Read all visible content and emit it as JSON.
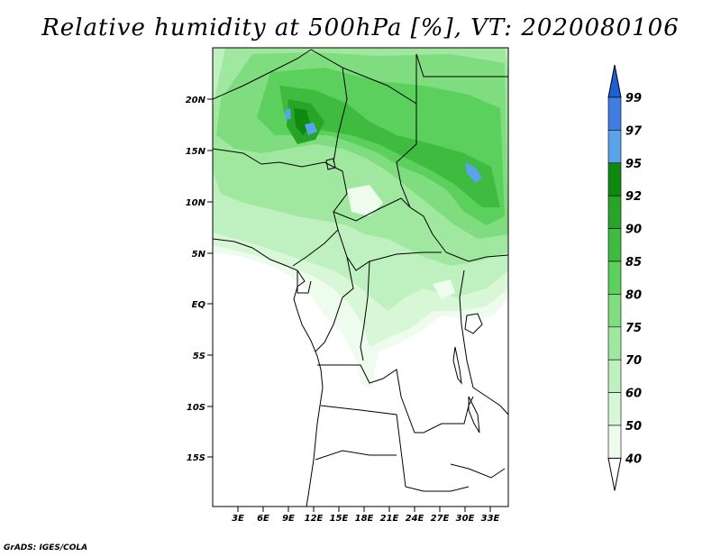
{
  "title": "Relative humidity at 500hPa [%], VT: 2020080106",
  "credit": "GrADS: IGES/COLA",
  "map": {
    "lon_range": [
      0,
      35
    ],
    "lat_range": [
      -20,
      25
    ],
    "lat_ticks": [
      "20N",
      "15N",
      "10N",
      "5N",
      "EQ",
      "5S",
      "10S",
      "15S"
    ],
    "lon_ticks": [
      "3E",
      "6E",
      "9E",
      "12E",
      "15E",
      "18E",
      "21E",
      "24E",
      "27E",
      "30E",
      "33E"
    ]
  },
  "colorbar": {
    "levels": [
      "99",
      "97",
      "95",
      "92",
      "90",
      "85",
      "80",
      "75",
      "70",
      "60",
      "50",
      "40"
    ],
    "colors": [
      "#1f5fd6",
      "#3f7ee0",
      "#5aa2ea",
      "#0e8a0e",
      "#27a527",
      "#3fbb3f",
      "#5cd05c",
      "#7fdd7f",
      "#a0e8a0",
      "#bff0bf",
      "#d7f7d7",
      "#eefcee"
    ],
    "top_color": "#1f5fd6",
    "bottom_color": "#ffffff"
  }
}
